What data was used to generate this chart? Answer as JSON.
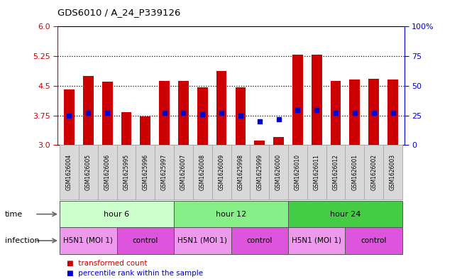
{
  "title": "GDS6010 / A_24_P339126",
  "samples": [
    "GSM1626004",
    "GSM1626005",
    "GSM1626006",
    "GSM1625995",
    "GSM1625996",
    "GSM1625997",
    "GSM1626007",
    "GSM1626008",
    "GSM1626009",
    "GSM1625998",
    "GSM1625999",
    "GSM1626000",
    "GSM1626010",
    "GSM1626011",
    "GSM1626012",
    "GSM1626001",
    "GSM1626002",
    "GSM1626003"
  ],
  "bar_values": [
    4.4,
    4.75,
    4.6,
    3.83,
    3.72,
    4.62,
    4.62,
    4.47,
    4.87,
    4.47,
    3.12,
    3.2,
    5.28,
    5.29,
    4.63,
    4.65,
    4.68,
    4.65
  ],
  "blue_dot_values": [
    3.75,
    3.82,
    3.82,
    null,
    null,
    3.82,
    3.82,
    3.78,
    3.82,
    3.75,
    3.6,
    3.65,
    3.88,
    3.88,
    3.82,
    3.82,
    3.82,
    3.82
  ],
  "bar_color": "#cc0000",
  "dot_color": "#0000cc",
  "ylim_left": [
    3.0,
    6.0
  ],
  "yticks_left": [
    3.0,
    3.75,
    4.5,
    5.25,
    6.0
  ],
  "ylim_right": [
    0,
    100
  ],
  "yticks_right": [
    0,
    25,
    50,
    75,
    100
  ],
  "ytick_labels_right": [
    "0",
    "25",
    "50",
    "75",
    "100%"
  ],
  "hline_values": [
    3.75,
    4.5,
    5.25
  ],
  "time_groups": [
    {
      "label": "hour 6",
      "start": 0,
      "end": 6,
      "color": "#ccffcc"
    },
    {
      "label": "hour 12",
      "start": 6,
      "end": 12,
      "color": "#88ee88"
    },
    {
      "label": "hour 24",
      "start": 12,
      "end": 18,
      "color": "#44cc44"
    }
  ],
  "infection_groups": [
    {
      "label": "H5N1 (MOI 1)",
      "start": 0,
      "end": 3,
      "color": "#ee99ee"
    },
    {
      "label": "control",
      "start": 3,
      "end": 6,
      "color": "#dd55dd"
    },
    {
      "label": "H5N1 (MOI 1)",
      "start": 6,
      "end": 9,
      "color": "#ee99ee"
    },
    {
      "label": "control",
      "start": 9,
      "end": 12,
      "color": "#dd55dd"
    },
    {
      "label": "H5N1 (MOI 1)",
      "start": 12,
      "end": 15,
      "color": "#ee99ee"
    },
    {
      "label": "control",
      "start": 15,
      "end": 18,
      "color": "#dd55dd"
    }
  ],
  "bar_width": 0.55,
  "background_color": "#ffffff",
  "plot_bg_color": "#ffffff",
  "axis_color_left": "#cc0000",
  "axis_color_right": "#0000cc",
  "sample_label_bg": "#d8d8d8",
  "sample_label_edge": "#aaaaaa"
}
